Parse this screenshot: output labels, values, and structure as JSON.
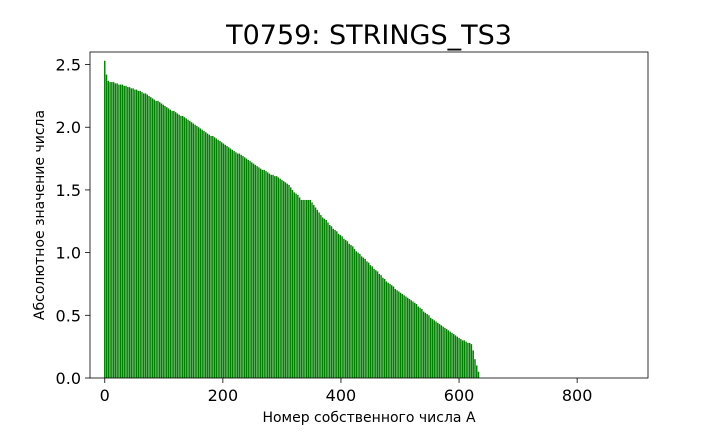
{
  "chart_data": {
    "type": "bar",
    "title": "T0759: STRINGS_TS3",
    "xlabel": "Номер собственного числа A",
    "ylabel": "Абсолютное значение числа",
    "xlim": [
      -25,
      920
    ],
    "ylim": [
      0,
      2.6
    ],
    "xticks": [
      0,
      200,
      400,
      600,
      800
    ],
    "yticks": [
      0.0,
      0.5,
      1.0,
      1.5,
      2.0,
      2.5
    ],
    "xtick_labels": [
      "0",
      "200",
      "400",
      "600",
      "800"
    ],
    "ytick_labels": [
      "0.0",
      "0.5",
      "1.0",
      "1.5",
      "2.0",
      "2.5"
    ],
    "grid": false,
    "bar_color": "#007f00",
    "bar_width": 2.4,
    "x_step": 3,
    "series": [
      {
        "x_start": 0,
        "values": [
          2.53,
          2.42,
          2.37,
          2.36,
          2.36,
          2.36,
          2.35,
          2.35,
          2.34,
          2.34,
          2.34,
          2.33,
          2.33,
          2.32,
          2.32,
          2.31,
          2.31,
          2.3,
          2.3,
          2.29,
          2.29,
          2.28,
          2.27,
          2.27,
          2.26,
          2.25,
          2.24,
          2.23,
          2.22,
          2.21,
          2.21,
          2.2,
          2.19,
          2.18,
          2.17,
          2.16,
          2.15,
          2.14,
          2.13,
          2.13,
          2.12,
          2.11,
          2.1,
          2.09,
          2.09,
          2.08,
          2.07,
          2.06,
          2.05,
          2.04,
          2.03,
          2.02,
          2.01,
          2.0,
          1.99,
          1.98,
          1.97,
          1.96,
          1.95,
          1.94,
          1.93,
          1.93,
          1.92,
          1.91,
          1.9,
          1.89,
          1.88,
          1.87,
          1.86,
          1.85,
          1.84,
          1.83,
          1.82,
          1.81,
          1.8,
          1.79,
          1.79,
          1.78,
          1.77,
          1.76,
          1.75,
          1.74,
          1.73,
          1.72,
          1.71,
          1.7,
          1.69,
          1.68,
          1.67,
          1.66,
          1.66,
          1.65,
          1.64,
          1.63,
          1.62,
          1.62,
          1.61,
          1.61,
          1.6,
          1.59,
          1.58,
          1.57,
          1.56,
          1.55,
          1.54,
          1.52,
          1.5,
          1.48,
          1.47,
          1.46,
          1.44,
          1.42,
          1.42,
          1.42,
          1.42,
          1.42,
          1.42,
          1.4,
          1.38,
          1.36,
          1.34,
          1.32,
          1.3,
          1.28,
          1.27,
          1.26,
          1.24,
          1.22,
          1.21,
          1.19,
          1.18,
          1.17,
          1.15,
          1.14,
          1.13,
          1.11,
          1.1,
          1.09,
          1.07,
          1.06,
          1.05,
          1.03,
          1.01,
          1.0,
          0.99,
          0.97,
          0.96,
          0.95,
          0.93,
          0.92,
          0.9,
          0.89,
          0.87,
          0.86,
          0.85,
          0.83,
          0.82,
          0.8,
          0.79,
          0.77,
          0.76,
          0.75,
          0.74,
          0.73,
          0.71,
          0.7,
          0.69,
          0.68,
          0.67,
          0.66,
          0.65,
          0.64,
          0.63,
          0.62,
          0.61,
          0.6,
          0.59,
          0.57,
          0.56,
          0.55,
          0.53,
          0.52,
          0.51,
          0.5,
          0.48,
          0.47,
          0.46,
          0.45,
          0.44,
          0.43,
          0.42,
          0.41,
          0.4,
          0.39,
          0.38,
          0.37,
          0.36,
          0.35,
          0.34,
          0.33,
          0.32,
          0.31,
          0.3,
          0.3,
          0.29,
          0.28,
          0.28,
          0.27,
          0.22,
          0.15,
          0.1,
          0.05
        ]
      }
    ]
  }
}
